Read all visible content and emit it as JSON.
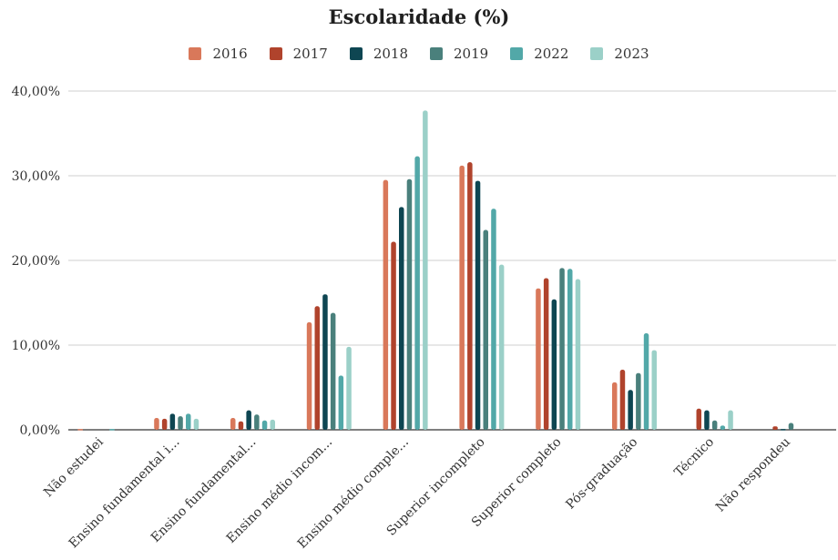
{
  "chart_data": {
    "type": "bar",
    "title": "Escolaridade (%)",
    "categories": [
      "Não estudei",
      "Ensino fundamental i...",
      "Ensino fundamental...",
      "Ensino médio incom...",
      "Ensino médio comple...",
      "Superior incompleto",
      "Superior completo",
      "Pós-graduação",
      "Técnico",
      "Não respondeu"
    ],
    "series": [
      {
        "name": "2016",
        "color": "#d9785a",
        "values": [
          0.1,
          1.4,
          1.4,
          12.7,
          29.5,
          31.2,
          16.7,
          5.6,
          0.0,
          0.0
        ]
      },
      {
        "name": "2017",
        "color": "#b0432c",
        "values": [
          0.0,
          1.3,
          1.0,
          14.6,
          22.2,
          31.6,
          17.9,
          7.1,
          2.5,
          0.4
        ]
      },
      {
        "name": "2018",
        "color": "#0e4652",
        "values": [
          0.0,
          1.9,
          2.3,
          16.0,
          26.3,
          29.4,
          15.4,
          4.7,
          2.3,
          0.1
        ]
      },
      {
        "name": "2019",
        "color": "#4a807c",
        "values": [
          0.0,
          1.6,
          1.8,
          13.8,
          29.6,
          23.6,
          19.1,
          6.7,
          1.1,
          0.8
        ]
      },
      {
        "name": "2022",
        "color": "#52a8a8",
        "values": [
          0.1,
          1.9,
          1.1,
          6.4,
          32.3,
          26.1,
          19.0,
          11.4,
          0.5,
          0.0
        ]
      },
      {
        "name": "2023",
        "color": "#9bd0c8",
        "values": [
          0.0,
          1.3,
          1.2,
          9.8,
          37.7,
          19.5,
          17.8,
          9.4,
          2.3,
          0.0
        ]
      }
    ],
    "ylim": [
      0,
      40
    ],
    "yticks": [
      "0,00%",
      "10,00%",
      "20,00%",
      "30,00%",
      "40,00%"
    ],
    "grid": true,
    "legend_position": "top-center"
  }
}
